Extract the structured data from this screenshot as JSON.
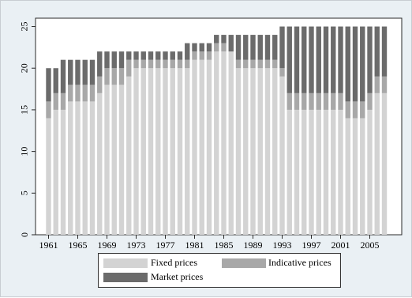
{
  "chart_data": {
    "type": "bar",
    "stacked": true,
    "categories": [
      1961,
      1962,
      1963,
      1964,
      1965,
      1966,
      1967,
      1968,
      1969,
      1970,
      1971,
      1972,
      1973,
      1974,
      1975,
      1976,
      1977,
      1978,
      1979,
      1980,
      1981,
      1982,
      1983,
      1984,
      1985,
      1986,
      1987,
      1988,
      1989,
      1990,
      1991,
      1992,
      1993,
      1994,
      1995,
      1996,
      1997,
      1998,
      1999,
      2000,
      2001,
      2002,
      2003,
      2004,
      2005,
      2006,
      2007
    ],
    "x_tick_labels": [
      "1961",
      "1965",
      "1969",
      "1973",
      "1977",
      "1981",
      "1985",
      "1989",
      "1993",
      "1997",
      "2001",
      "2005"
    ],
    "y_tick_labels": [
      "0",
      "5",
      "10",
      "15",
      "20",
      "25"
    ],
    "ylim": [
      0,
      26
    ],
    "series": [
      {
        "name": "Fixed prices",
        "color": "#d3d3d3",
        "values": [
          14,
          15,
          15,
          16,
          16,
          16,
          16,
          17,
          18,
          18,
          18,
          19,
          20,
          20,
          20,
          20,
          20,
          20,
          20,
          20,
          21,
          21,
          21,
          22,
          22,
          22,
          20,
          20,
          20,
          20,
          20,
          20,
          19,
          15,
          15,
          15,
          15,
          15,
          15,
          15,
          15,
          14,
          14,
          14,
          15,
          17,
          17
        ]
      },
      {
        "name": "Indicative prices",
        "color": "#a8a8a8",
        "values": [
          2,
          2,
          2,
          2,
          2,
          2,
          2,
          2,
          2,
          2,
          2,
          2,
          1,
          1,
          1,
          1,
          1,
          1,
          1,
          1,
          1,
          1,
          1,
          1,
          1,
          0,
          1,
          1,
          1,
          1,
          1,
          1,
          1,
          2,
          2,
          2,
          2,
          2,
          2,
          2,
          2,
          2,
          2,
          2,
          2,
          2,
          2
        ]
      },
      {
        "name": "Market prices",
        "color": "#6b6b6b",
        "values": [
          4,
          3,
          4,
          3,
          3,
          3,
          3,
          3,
          2,
          2,
          2,
          1,
          1,
          1,
          1,
          1,
          1,
          1,
          1,
          2,
          1,
          1,
          1,
          1,
          1,
          2,
          3,
          3,
          3,
          3,
          3,
          3,
          5,
          8,
          8,
          8,
          8,
          8,
          8,
          8,
          8,
          9,
          9,
          9,
          8,
          6,
          6
        ]
      }
    ],
    "legend_position": "bottom",
    "grid": false,
    "title": "",
    "xlabel": "",
    "ylabel": ""
  }
}
